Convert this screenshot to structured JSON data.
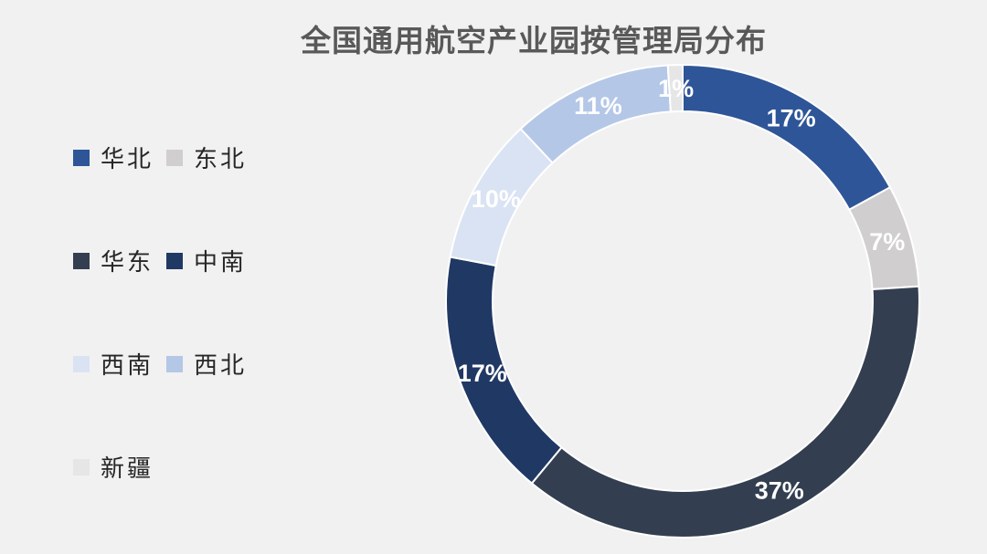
{
  "chart_data": {
    "type": "pie",
    "style": "donut",
    "title": "全国通用航空产业园按管理局分布",
    "legend_position": "left",
    "categories": [
      "华北",
      "东北",
      "华东",
      "中南",
      "西南",
      "西北",
      "新疆"
    ],
    "values": [
      17,
      7,
      37,
      17,
      10,
      11,
      1
    ],
    "data_labels": [
      "17%",
      "7%",
      "37%",
      "17%",
      "10%",
      "11%",
      "1%"
    ],
    "colors": [
      "#2e5597",
      "#d0cece",
      "#333f50",
      "#203864",
      "#dae3f3",
      "#b4c7e7",
      "#e7e6e6"
    ],
    "label_colors": [
      "#ffffff",
      "#ffffff",
      "#ffffff",
      "#ffffff",
      "#ffffff",
      "#ffffff",
      "#ffffff"
    ]
  }
}
